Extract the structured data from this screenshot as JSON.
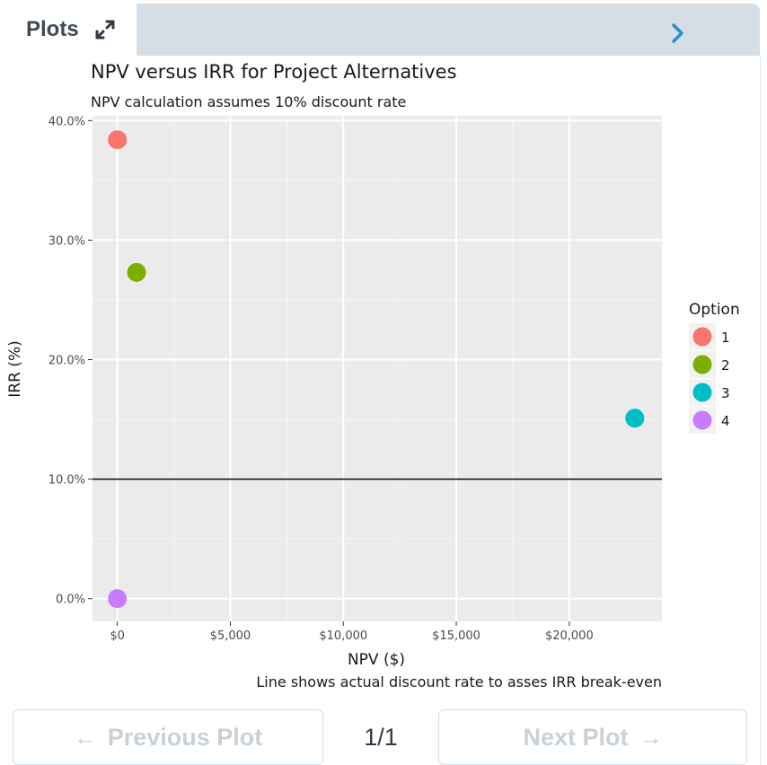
{
  "panel": {
    "tab_label": "Plots",
    "expand_icon": "expand-icon",
    "collapse_icon": "chevron-right-icon"
  },
  "chart_data": {
    "type": "scatter",
    "title": "NPV versus IRR for Project Alternatives",
    "subtitle": "NPV calculation assumes 10% discount rate",
    "caption": "Line shows actual discount rate to asses IRR break-even",
    "xlabel": "NPV ($)",
    "ylabel": "IRR (%)",
    "x_ticks": [
      0,
      5000,
      10000,
      15000,
      20000
    ],
    "x_tick_labels": [
      "$0",
      "$5,000",
      "$10,000",
      "$15,000",
      "$20,000"
    ],
    "y_ticks": [
      0,
      10,
      20,
      30,
      40
    ],
    "y_tick_labels": [
      "0.0%",
      "10.0%",
      "20.0%",
      "30.0%",
      "40.0%"
    ],
    "xlim": [
      -1100,
      24100
    ],
    "ylim": [
      -1.9,
      40.4
    ],
    "grid": true,
    "hline": {
      "y": 10
    },
    "legend": {
      "title": "Option",
      "position": "right"
    },
    "series": [
      {
        "name": "1",
        "color": "#F8766D",
        "points": [
          {
            "x": 0,
            "y": 38.4
          }
        ]
      },
      {
        "name": "2",
        "color": "#7CAE00",
        "points": [
          {
            "x": 850,
            "y": 27.3
          }
        ]
      },
      {
        "name": "3",
        "color": "#00BFC4",
        "points": [
          {
            "x": 22900,
            "y": 15.1
          }
        ]
      },
      {
        "name": "4",
        "color": "#C77CFF",
        "points": [
          {
            "x": 0,
            "y": 0
          }
        ]
      }
    ]
  },
  "footer": {
    "prev_label": "Previous Plot",
    "prev_arrow": "←",
    "next_label": "Next Plot",
    "next_arrow": "→",
    "page_indicator": "1/1"
  }
}
